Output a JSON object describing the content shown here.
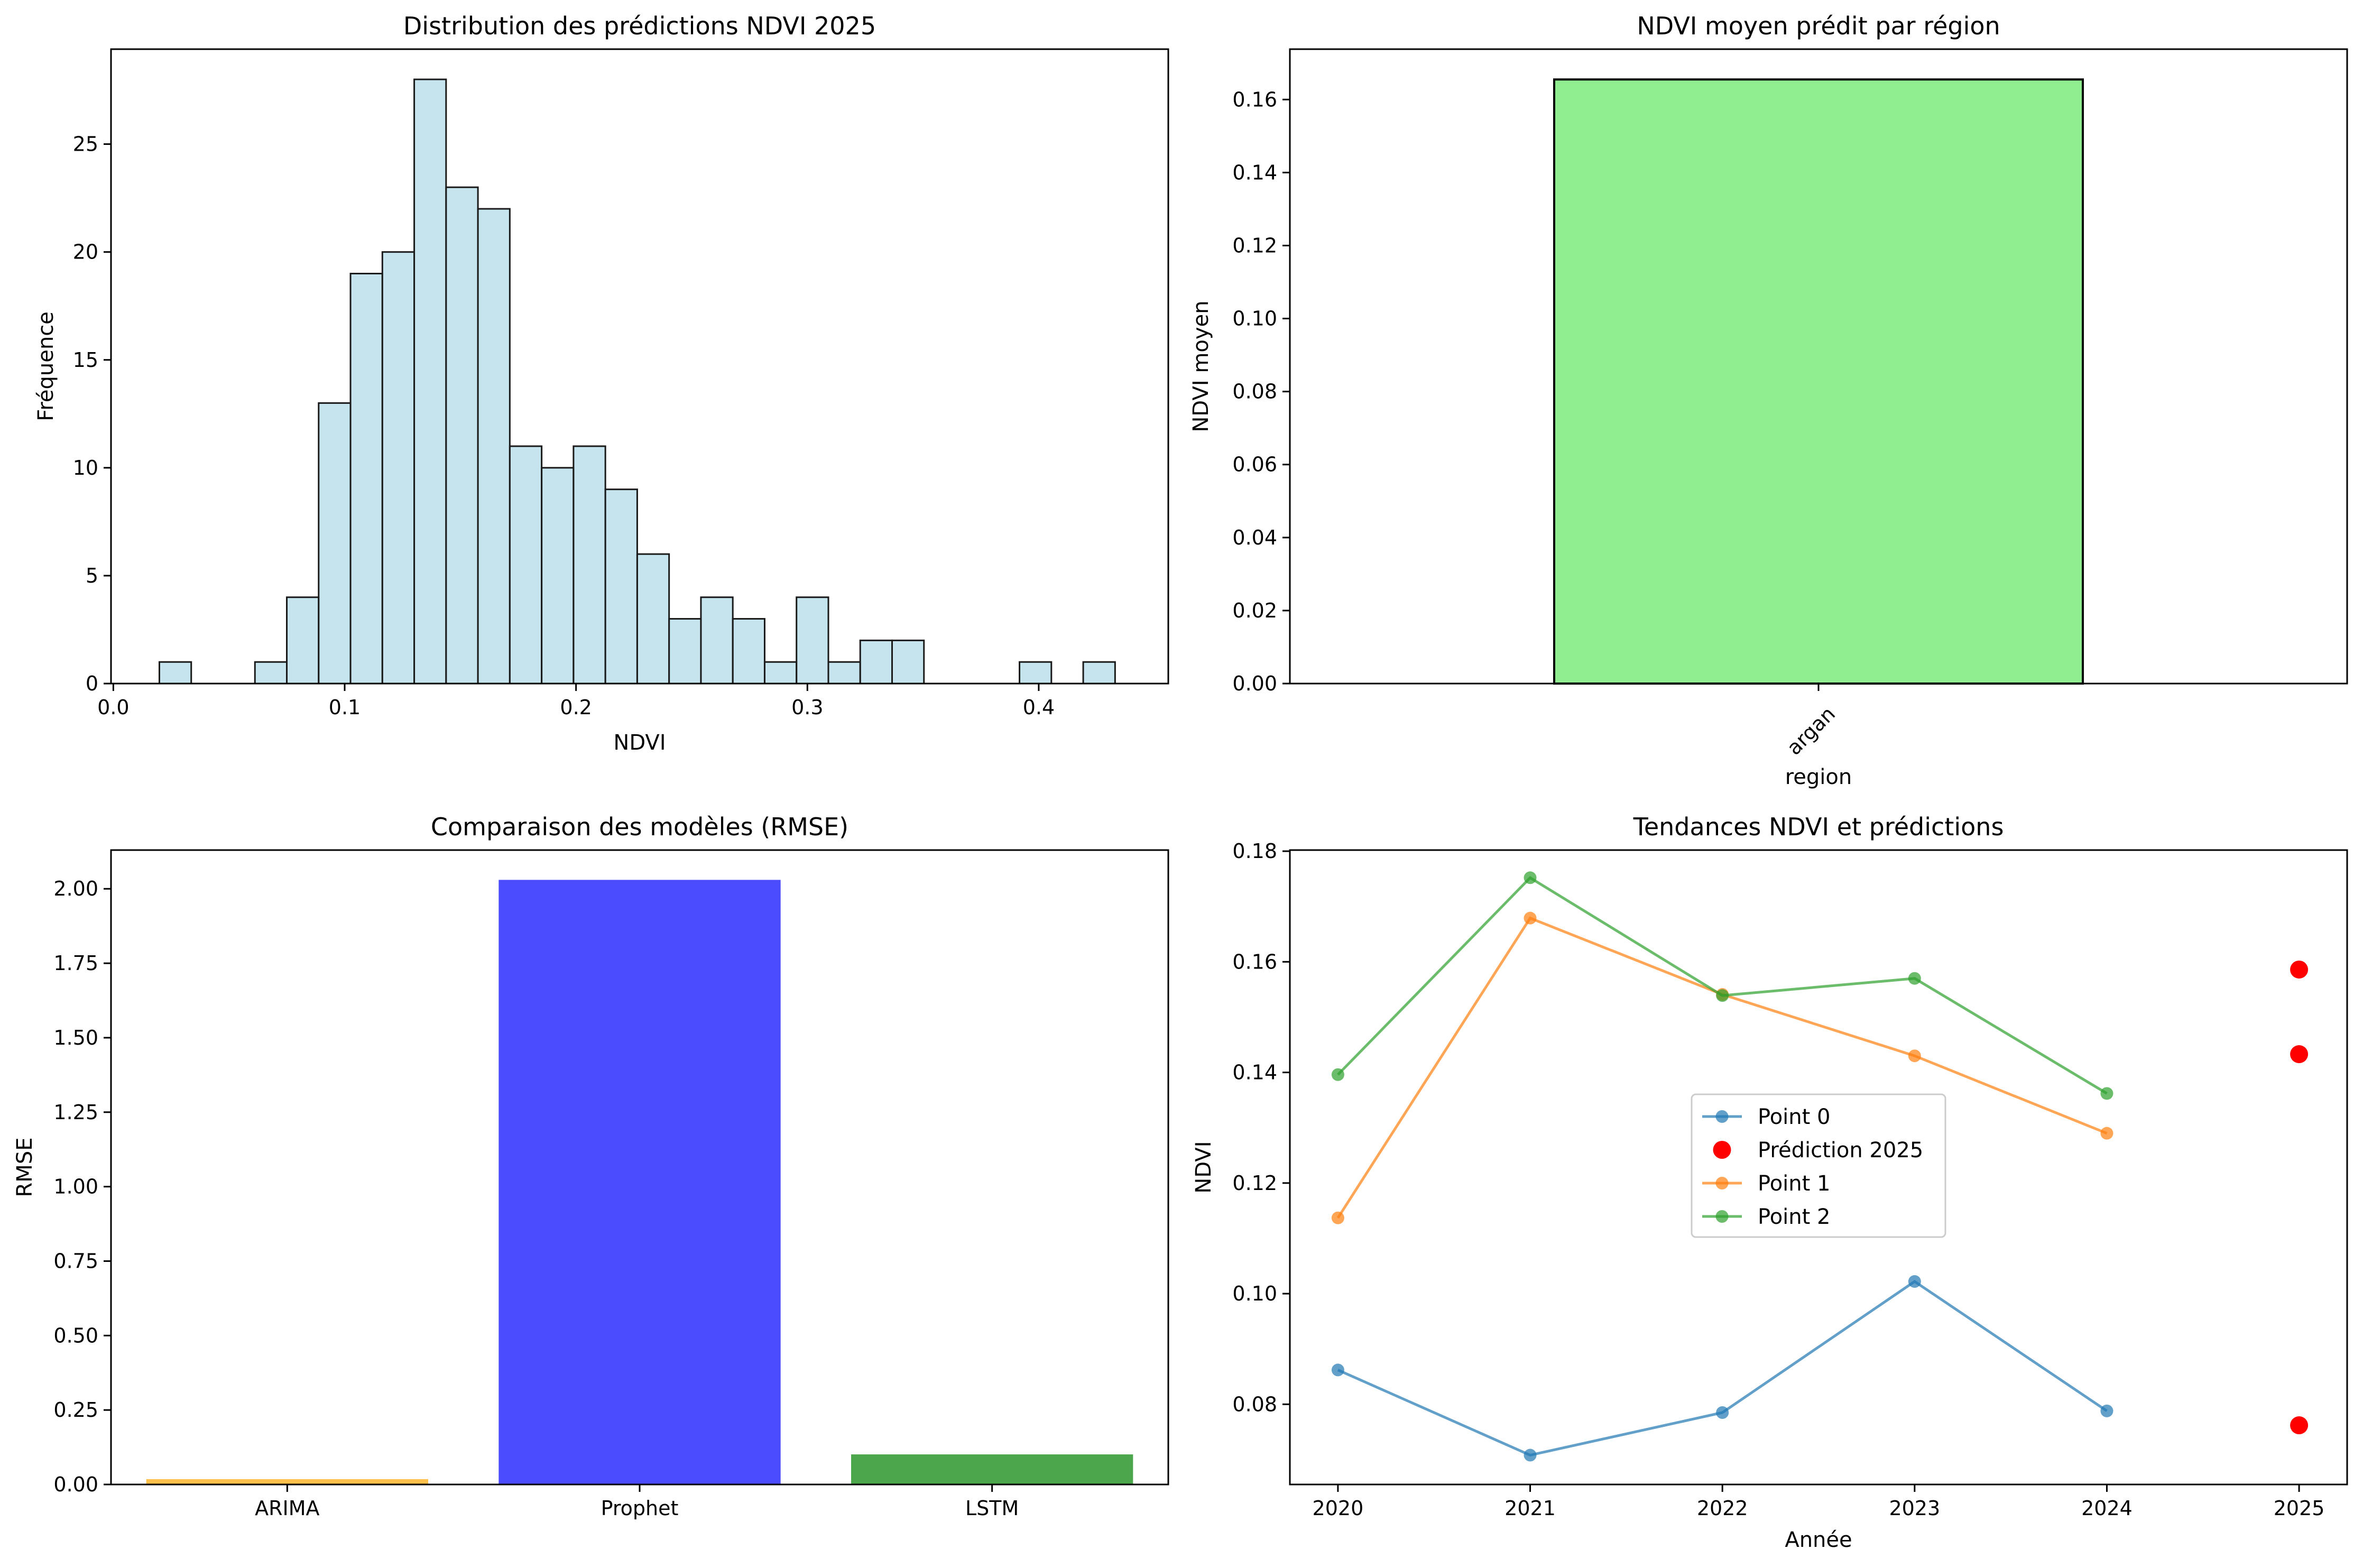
{
  "chart_data": [
    {
      "type": "bar",
      "subtype": "histogram",
      "title": "Distribution des prédictions NDVI 2025",
      "xlabel": "NDVI",
      "ylabel": "Fréquence",
      "xlim": [
        -0.001,
        0.456
      ],
      "ylim": [
        0,
        29.4
      ],
      "xticks": [
        {
          "value": 0.0,
          "label": "0.0"
        },
        {
          "value": 0.1,
          "label": "0.1"
        },
        {
          "value": 0.2,
          "label": "0.2"
        },
        {
          "value": 0.3,
          "label": "0.3"
        },
        {
          "value": 0.4,
          "label": "0.4"
        }
      ],
      "yticks": [
        {
          "value": 0,
          "label": "0"
        },
        {
          "value": 5,
          "label": "5"
        },
        {
          "value": 10,
          "label": "10"
        },
        {
          "value": 15,
          "label": "15"
        },
        {
          "value": 20,
          "label": "20"
        },
        {
          "value": 25,
          "label": "25"
        }
      ],
      "bin_start": 0.0199,
      "bin_width": 0.01377,
      "counts": [
        1,
        0,
        0,
        1,
        4,
        13,
        19,
        20,
        28,
        23,
        22,
        11,
        10,
        11,
        9,
        6,
        3,
        4,
        3,
        1,
        4,
        1,
        2,
        2,
        0,
        0,
        0,
        1,
        0,
        1
      ],
      "color": "#add8e6",
      "edgecolor": "#000000",
      "grid": false
    },
    {
      "type": "bar",
      "title": "NDVI moyen prédit par région",
      "xlabel": "region",
      "ylabel": "NDVI moyen",
      "categories": [
        "argan"
      ],
      "values": [
        0.1655
      ],
      "xlim": [
        -0.5,
        0.5
      ],
      "ylim": [
        0,
        0.1738
      ],
      "yticks": [
        {
          "value": 0.0,
          "label": "0.00"
        },
        {
          "value": 0.02,
          "label": "0.02"
        },
        {
          "value": 0.04,
          "label": "0.04"
        },
        {
          "value": 0.06,
          "label": "0.06"
        },
        {
          "value": 0.08,
          "label": "0.08"
        },
        {
          "value": 0.1,
          "label": "0.10"
        },
        {
          "value": 0.12,
          "label": "0.12"
        },
        {
          "value": 0.14,
          "label": "0.14"
        },
        {
          "value": 0.16,
          "label": "0.16"
        }
      ],
      "color": "#90ee90",
      "edgecolor": "#000000",
      "grid": false
    },
    {
      "type": "bar",
      "title": "Comparaison des modèles (RMSE)",
      "xlabel": "",
      "ylabel": "RMSE",
      "categories": [
        "ARIMA",
        "Prophet",
        "LSTM"
      ],
      "values": [
        0.018,
        2.03,
        0.101
      ],
      "colors": [
        "#ffa500",
        "#0000ff",
        "#008000"
      ],
      "ylim": [
        0,
        2.13
      ],
      "yticks": [
        {
          "value": 0.0,
          "label": "0.00"
        },
        {
          "value": 0.25,
          "label": "0.25"
        },
        {
          "value": 0.5,
          "label": "0.50"
        },
        {
          "value": 0.75,
          "label": "0.75"
        },
        {
          "value": 1.0,
          "label": "1.00"
        },
        {
          "value": 1.25,
          "label": "1.25"
        },
        {
          "value": 1.5,
          "label": "1.50"
        },
        {
          "value": 1.75,
          "label": "1.75"
        },
        {
          "value": 2.0,
          "label": "2.00"
        }
      ],
      "alpha": 0.7,
      "grid": false
    },
    {
      "type": "line",
      "title": "Tendances NDVI et prédictions",
      "xlabel": "Année",
      "ylabel": "NDVI",
      "x": [
        2020,
        2021,
        2022,
        2023,
        2024
      ],
      "xlim": [
        2019.75,
        2025.25
      ],
      "ylim": [
        0.0655,
        0.1802
      ],
      "xticks": [
        {
          "value": 2020,
          "label": "2020"
        },
        {
          "value": 2021,
          "label": "2021"
        },
        {
          "value": 2022,
          "label": "2022"
        },
        {
          "value": 2023,
          "label": "2023"
        },
        {
          "value": 2024,
          "label": "2024"
        },
        {
          "value": 2025,
          "label": "2025"
        }
      ],
      "yticks": [
        {
          "value": 0.08,
          "label": "0.08"
        },
        {
          "value": 0.1,
          "label": "0.10"
        },
        {
          "value": 0.12,
          "label": "0.12"
        },
        {
          "value": 0.14,
          "label": "0.14"
        },
        {
          "value": 0.16,
          "label": "0.16"
        },
        {
          "value": 0.18,
          "label": "0.18"
        }
      ],
      "series": [
        {
          "name": "Point 0",
          "color": "#1f77b4",
          "values": [
            0.0862,
            0.0708,
            0.0785,
            0.1022,
            0.0788
          ]
        },
        {
          "name": "Point 1",
          "color": "#ff7f0e",
          "values": [
            0.1137,
            0.1679,
            0.1541,
            0.143,
            0.129
          ]
        },
        {
          "name": "Point 2",
          "color": "#2ca02c",
          "values": [
            0.1396,
            0.1752,
            0.1539,
            0.157,
            0.1362
          ]
        }
      ],
      "predictions": {
        "name": "Prédiction 2025",
        "x": 2025,
        "values": [
          0.0762,
          0.1433,
          0.1586
        ],
        "color": "#ff0000"
      },
      "legend": {
        "placement": "center",
        "items": [
          "Point 0",
          "Prédiction 2025",
          "Point 1",
          "Point 2"
        ]
      },
      "alpha": 0.7,
      "grid": false
    }
  ]
}
